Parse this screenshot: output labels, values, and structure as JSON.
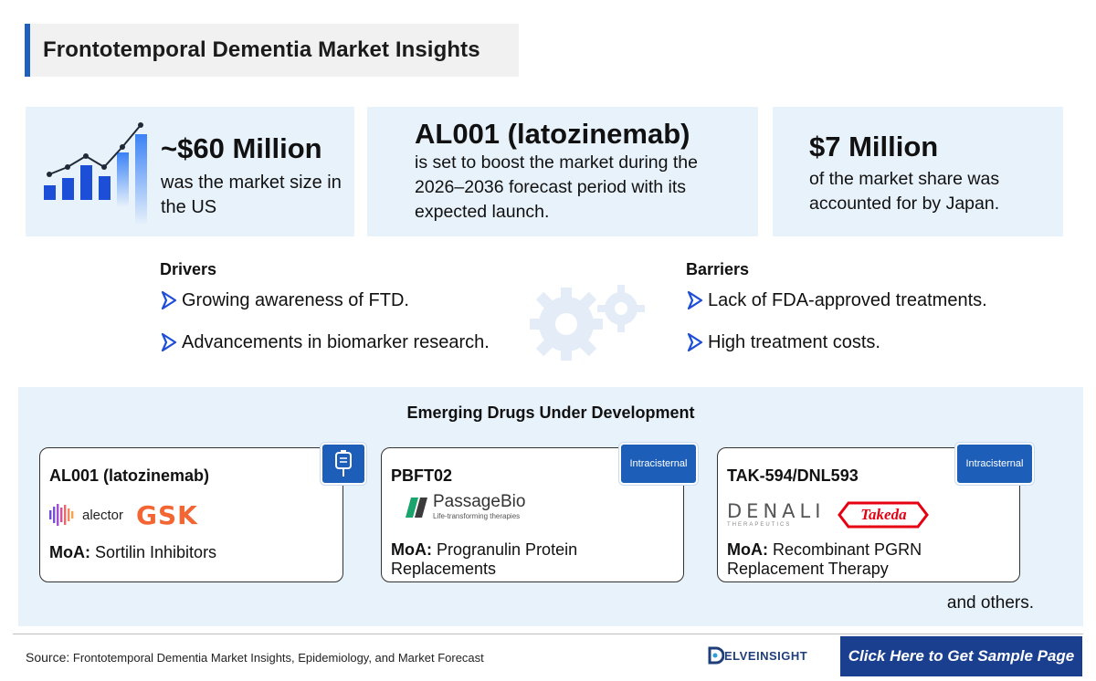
{
  "title": "Frontotemporal Dementia Market Insights",
  "stats": [
    {
      "value": "~$60 Million",
      "description": "was the market size in the US"
    },
    {
      "value": "AL001 (latozinemab)",
      "description": "is set to boost the market during the 2026–2036 forecast period with its expected launch."
    },
    {
      "value": "$7 Million",
      "description": "of the market share was accounted for by Japan."
    }
  ],
  "drivers": {
    "heading": "Drivers",
    "items": [
      "Growing awareness of FTD.",
      "Advancements in biomarker research."
    ]
  },
  "barriers": {
    "heading": "Barriers",
    "items": [
      "Lack of FDA-approved treatments.",
      "High treatment costs."
    ]
  },
  "emerging": {
    "heading": "Emerging Drugs Under Development",
    "moa_label": "MoA:",
    "drugs": [
      {
        "name": "AL001 (latozinemab)",
        "route_icon": "iv-bag-icon",
        "companies": [
          "alector",
          "GSK"
        ],
        "moa": "Sortilin Inhibitors"
      },
      {
        "name": "PBFT02",
        "route": "Intracisternal",
        "companies": [
          "PassageBio",
          "Life-transforming therapies"
        ],
        "moa": "Progranulin Protein Replacements"
      },
      {
        "name": "TAK-594/DNL593",
        "route": "Intracisternal",
        "companies": [
          "DENALI",
          "THERAPEUTICS",
          "Takeda"
        ],
        "moa": "Recombinant PGRN Replacement Therapy"
      }
    ],
    "and_others": "and others."
  },
  "footer": {
    "source_label": "Source:",
    "source_text": "Frontotemporal Dementia Market Insights, Epidemiology, and Market Forecast",
    "brand": "ELVEINSIGHT",
    "cta": "Click Here to Get Sample Page"
  },
  "colors": {
    "accent": "#1f5fbf",
    "panel": "#e8f2fb",
    "cta": "#1a3f8f",
    "gsk_orange": "#f36633",
    "takeda_red": "#e60012"
  }
}
